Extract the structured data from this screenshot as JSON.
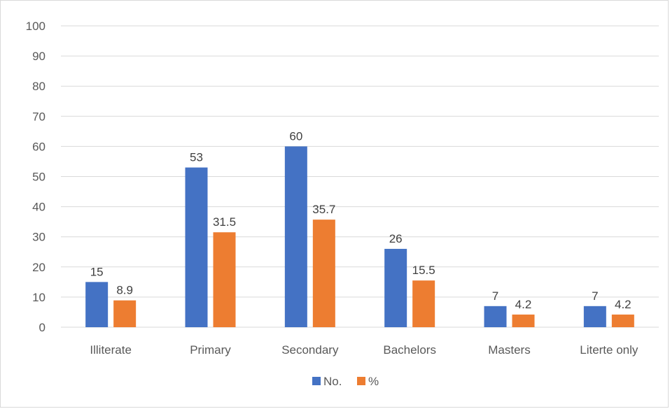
{
  "chart_data": {
    "type": "bar",
    "categories": [
      "Illiterate",
      "Primary",
      "Secondary",
      "Bachelors",
      "Masters",
      "Literte only"
    ],
    "series": [
      {
        "name": "No.",
        "values": [
          15,
          53,
          60,
          26,
          7,
          7
        ],
        "color": "#4472c4"
      },
      {
        "name": "%",
        "values": [
          8.9,
          31.5,
          35.7,
          15.5,
          4.2,
          4.2
        ],
        "color": "#ed7d31"
      }
    ],
    "yticks": [
      "0",
      "10",
      "20",
      "30",
      "40",
      "50",
      "60",
      "70",
      "80",
      "90",
      "100"
    ],
    "ylim": [
      0,
      100
    ],
    "grid": true,
    "legend_position": "bottom",
    "gridline_color": "#d9d9d9"
  }
}
